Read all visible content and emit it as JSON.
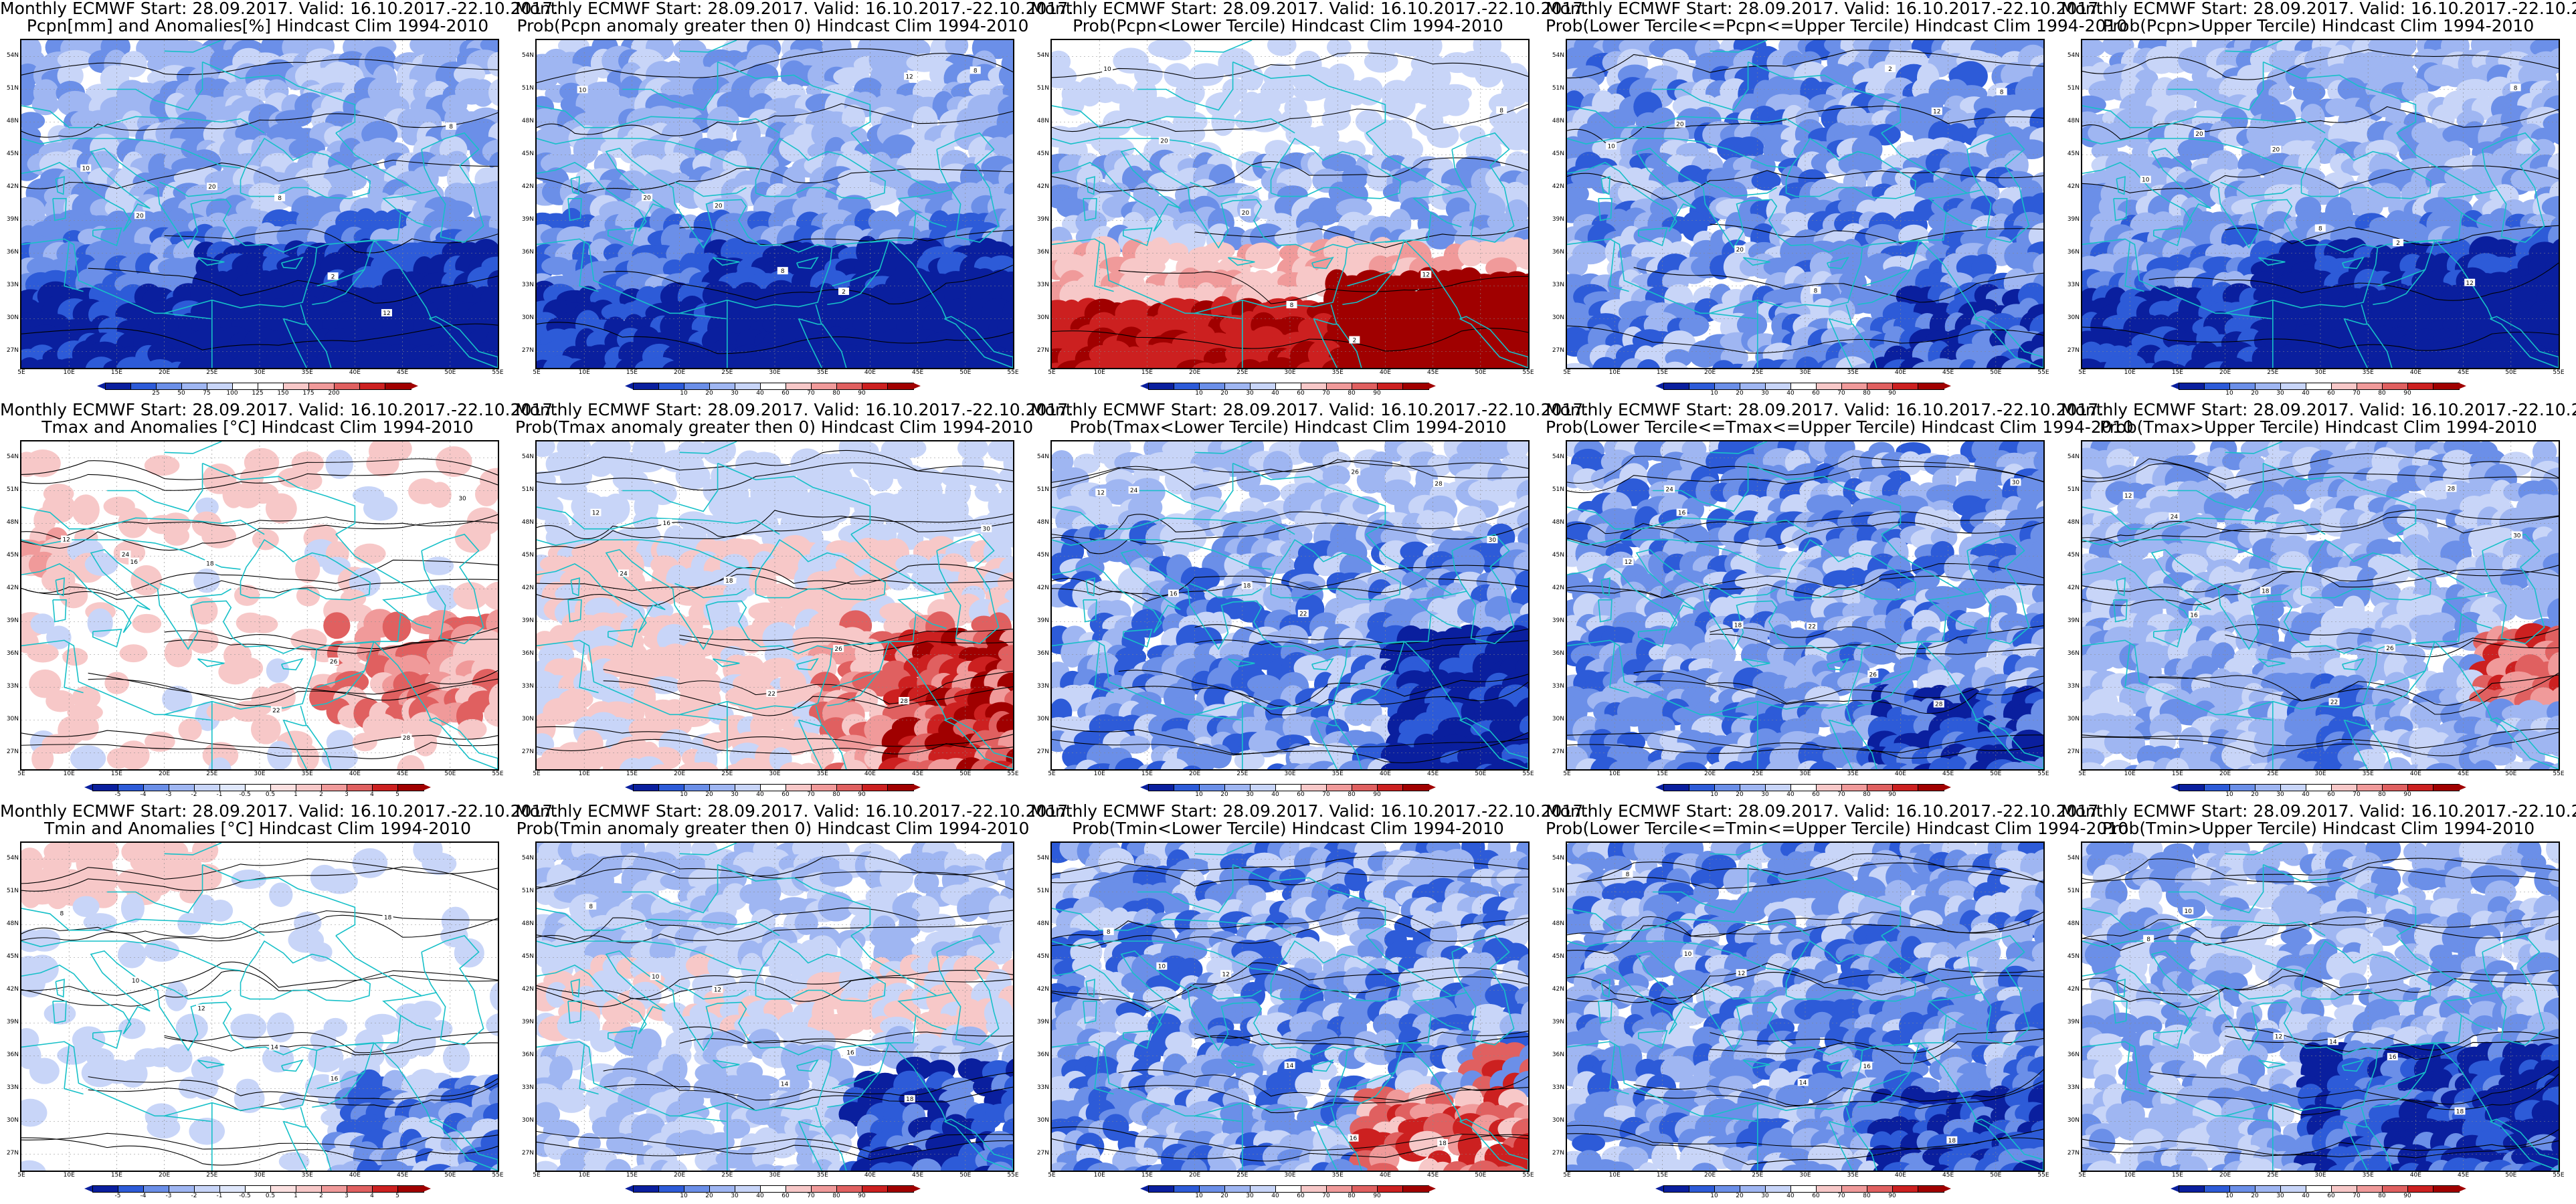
{
  "header_prefix": "Monthly ECMWF Start: 28.09.2017. Valid: 16.10.2017.-22.10.2017.",
  "lat_ticks": [
    "54N",
    "51N",
    "48N",
    "45N",
    "42N",
    "39N",
    "36N",
    "33N",
    "30N",
    "27N"
  ],
  "lon_ticks": [
    "5E",
    "10E",
    "15E",
    "20E",
    "25E",
    "30E",
    "35E",
    "40E",
    "45E",
    "50E",
    "55E"
  ],
  "colorbars": {
    "pcpn_anom": {
      "colors": [
        "#0a1f9e",
        "#2d5bd8",
        "#6b8fe8",
        "#9fb6f2",
        "#c8d5f8",
        "#ffffff",
        "#ffffff",
        "#f7c8c8",
        "#f09a9a",
        "#e06060",
        "#cc2020",
        "#a00000"
      ],
      "labels": [
        "25",
        "50",
        "75",
        "100",
        "125",
        "150",
        "175",
        "200"
      ]
    },
    "prob": {
      "colors": [
        "#0a1f9e",
        "#2d5bd8",
        "#6b8fe8",
        "#9fb6f2",
        "#c8d5f8",
        "#ffffff",
        "#f7c8c8",
        "#f09a9a",
        "#e06060",
        "#cc2020",
        "#a00000"
      ],
      "labels": [
        "10",
        "20",
        "30",
        "40",
        "60",
        "70",
        "80",
        "90"
      ]
    },
    "temp_anom": {
      "colors": [
        "#0a1f9e",
        "#2d5bd8",
        "#6b8fe8",
        "#9fb6f2",
        "#c8d5f8",
        "#dfe7fb",
        "#ffffff",
        "#fbe0e0",
        "#f7c8c8",
        "#f09a9a",
        "#e06060",
        "#cc2020",
        "#a00000"
      ],
      "labels": [
        "-5",
        "-4",
        "-3",
        "-2",
        "-1",
        "-0.5",
        "0.5",
        "1",
        "2",
        "3",
        "4",
        "5"
      ]
    }
  },
  "panels": [
    {
      "subtitle": "Pcpn[mm] and Anomalies[%] Hindcast Clim 1994-2010",
      "colorbar": "pcpn_anom",
      "theme": "pcpn_anom",
      "labels": [
        "10",
        "20",
        "20",
        "8",
        "2",
        "12",
        "8"
      ]
    },
    {
      "subtitle": "Prob(Pcpn anomaly greater then 0) Hindcast Clim 1994-2010",
      "colorbar": "prob",
      "theme": "blue_south",
      "labels": [
        "10",
        "20",
        "20",
        "8",
        "2",
        "12",
        "8"
      ]
    },
    {
      "subtitle": "Prob(Pcpn<Lower Tercile) Hindcast Clim 1994-2010",
      "colorbar": "prob",
      "theme": "red_south",
      "labels": [
        "10",
        "20",
        "20",
        "8",
        "2",
        "12",
        "8"
      ]
    },
    {
      "subtitle": "Prob(Lower Tercile<=Pcpn<=Upper Tercile) Hindcast Clim 1994-2010",
      "colorbar": "prob",
      "theme": "blue_mix",
      "labels": [
        "10",
        "20",
        "20",
        "8",
        "2",
        "12",
        "8"
      ]
    },
    {
      "subtitle": "Prob(Pcpn>Upper Tercile) Hindcast Clim 1994-2010",
      "colorbar": "prob",
      "theme": "blue_south",
      "labels": [
        "10",
        "20",
        "20",
        "8",
        "2",
        "12",
        "8"
      ]
    },
    {
      "subtitle": "Tmax and Anomalies [°C] Hindcast Clim 1994-2010",
      "colorbar": "temp_anom",
      "theme": "red_east",
      "labels": [
        "12",
        "16",
        "18",
        "22",
        "26",
        "28",
        "30",
        "24"
      ]
    },
    {
      "subtitle": "Prob(Tmax anomaly greater then 0) Hindcast Clim 1994-2010",
      "colorbar": "prob",
      "theme": "red_east_strong",
      "labels": [
        "12",
        "16",
        "18",
        "22",
        "26",
        "28",
        "30",
        "24"
      ]
    },
    {
      "subtitle": "Prob(Tmax<Lower Tercile) Hindcast Clim 1994-2010",
      "colorbar": "prob",
      "theme": "blue_strong",
      "labels": [
        "12",
        "16",
        "18",
        "22",
        "26",
        "28",
        "30",
        "24"
      ]
    },
    {
      "subtitle": "Prob(Lower Tercile<=Tmax<=Upper Tercile) Hindcast Clim 1994-2010",
      "colorbar": "prob",
      "theme": "blue_mix",
      "labels": [
        "12",
        "16",
        "18",
        "22",
        "26",
        "28",
        "30",
        "24"
      ]
    },
    {
      "subtitle": "Prob(Tmax>Upper Tercile) Hindcast Clim 1994-2010",
      "colorbar": "prob",
      "theme": "blue_red_spot",
      "labels": [
        "12",
        "16",
        "18",
        "22",
        "26",
        "28",
        "30",
        "24"
      ]
    },
    {
      "subtitle": "Tmin and Anomalies [°C] Hindcast Clim 1994-2010",
      "colorbar": "temp_anom",
      "theme": "white_blue_se",
      "labels": [
        "8",
        "10",
        "12",
        "14",
        "16",
        "18"
      ]
    },
    {
      "subtitle": "Prob(Tmin anomaly greater then 0) Hindcast Clim 1994-2010",
      "colorbar": "prob",
      "theme": "blue_se_strong",
      "labels": [
        "8",
        "10",
        "12",
        "14",
        "16",
        "18"
      ]
    },
    {
      "subtitle": "Prob(Tmin<Lower Tercile) Hindcast Clim 1994-2010",
      "colorbar": "prob",
      "theme": "blue_red_se",
      "labels": [
        "8",
        "10",
        "12",
        "14",
        "16",
        "18"
      ]
    },
    {
      "subtitle": "Prob(Lower Tercile<=Tmin<=Upper Tercile) Hindcast Clim 1994-2010",
      "colorbar": "prob",
      "theme": "blue_mix",
      "labels": [
        "8",
        "10",
        "12",
        "14",
        "16",
        "18"
      ]
    },
    {
      "subtitle": "Prob(Tmin>Upper Tercile) Hindcast Clim 1994-2010",
      "colorbar": "prob",
      "theme": "blue_deep",
      "labels": [
        "8",
        "10",
        "12",
        "14",
        "16",
        "18"
      ]
    }
  ]
}
